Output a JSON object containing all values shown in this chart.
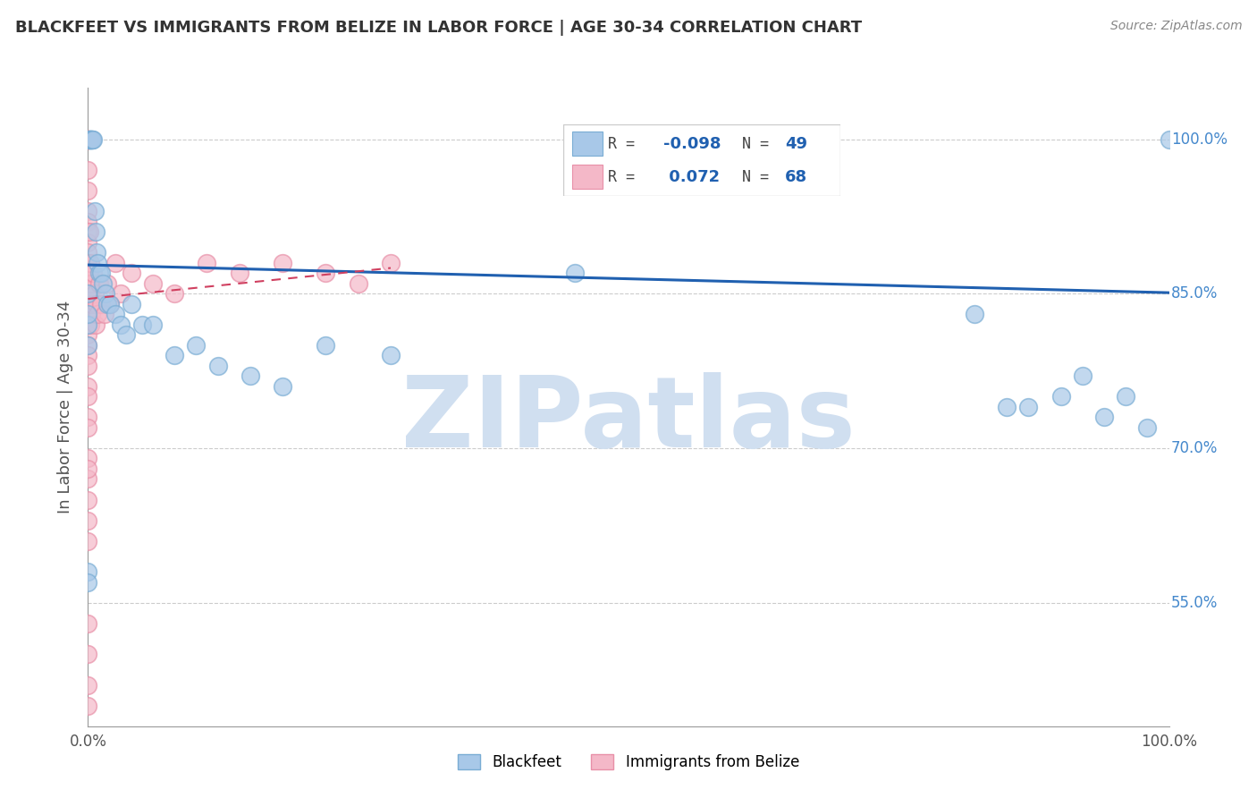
{
  "title": "BLACKFEET VS IMMIGRANTS FROM BELIZE IN LABOR FORCE | AGE 30-34 CORRELATION CHART",
  "source": "Source: ZipAtlas.com",
  "ylabel": "In Labor Force | Age 30-34",
  "legend_labels": [
    "Blackfeet",
    "Immigrants from Belize"
  ],
  "r_blue": -0.098,
  "n_blue": 49,
  "r_pink": 0.072,
  "n_pink": 68,
  "blue_color": "#a8c8e8",
  "pink_color": "#f4b8c8",
  "blue_edge_color": "#7aadd4",
  "pink_edge_color": "#e890a8",
  "blue_line_color": "#2060b0",
  "pink_line_color": "#d04060",
  "watermark": "ZIPatlas",
  "watermark_color": "#d0dff0",
  "xlim": [
    0.0,
    1.0
  ],
  "ylim": [
    0.43,
    1.05
  ],
  "ytick_positions": [
    0.55,
    0.7,
    0.85,
    1.0
  ],
  "ytick_labels": [
    "55.0%",
    "70.0%",
    "85.0%",
    "100.0%"
  ],
  "xtick_positions": [
    0.0,
    0.2,
    0.4,
    0.6,
    0.8,
    1.0
  ],
  "xtick_labels": [
    "0.0%",
    "",
    "",
    "",
    "",
    "100.0%"
  ],
  "blue_line_x0": 0.0,
  "blue_line_y0": 0.878,
  "blue_line_x1": 1.0,
  "blue_line_y1": 0.851,
  "pink_line_x0": 0.0,
  "pink_line_y0": 0.845,
  "pink_line_x1": 0.28,
  "pink_line_y1": 0.875,
  "blue_x": [
    0.001,
    0.001,
    0.001,
    0.002,
    0.002,
    0.003,
    0.003,
    0.004,
    0.004,
    0.005,
    0.006,
    0.007,
    0.008,
    0.009,
    0.01,
    0.012,
    0.014,
    0.016,
    0.018,
    0.02,
    0.025,
    0.03,
    0.035,
    0.04,
    0.05,
    0.06,
    0.08,
    0.1,
    0.12,
    0.15,
    0.18,
    0.22,
    0.28,
    0.45,
    0.82,
    0.85,
    0.87,
    0.9,
    0.92,
    0.94,
    0.96,
    0.98,
    1.0,
    0.0,
    0.0,
    0.0,
    0.0,
    0.0,
    0.0
  ],
  "blue_y": [
    1.0,
    1.0,
    1.0,
    1.0,
    1.0,
    1.0,
    1.0,
    1.0,
    1.0,
    1.0,
    0.93,
    0.91,
    0.89,
    0.88,
    0.87,
    0.87,
    0.86,
    0.85,
    0.84,
    0.84,
    0.83,
    0.82,
    0.81,
    0.84,
    0.82,
    0.82,
    0.79,
    0.8,
    0.78,
    0.77,
    0.76,
    0.8,
    0.79,
    0.87,
    0.83,
    0.74,
    0.74,
    0.75,
    0.77,
    0.73,
    0.75,
    0.72,
    1.0,
    0.58,
    0.57,
    0.82,
    0.8,
    0.85,
    0.83
  ],
  "pink_x": [
    0.0,
    0.0,
    0.0,
    0.0,
    0.0,
    0.0,
    0.0,
    0.0,
    0.0,
    0.0,
    0.0,
    0.0,
    0.0,
    0.0,
    0.0,
    0.0,
    0.0,
    0.0,
    0.0,
    0.0,
    0.0,
    0.0,
    0.0,
    0.0,
    0.0,
    0.0,
    0.0,
    0.0,
    0.0,
    0.0,
    0.001,
    0.001,
    0.001,
    0.002,
    0.002,
    0.002,
    0.003,
    0.003,
    0.004,
    0.005,
    0.006,
    0.007,
    0.008,
    0.009,
    0.01,
    0.012,
    0.015,
    0.018,
    0.02,
    0.025,
    0.03,
    0.04,
    0.06,
    0.08,
    0.11,
    0.14,
    0.18,
    0.22,
    0.25,
    0.28,
    0.0,
    0.0,
    0.0,
    0.0,
    0.0,
    0.0,
    0.0,
    0.0
  ],
  "pink_y": [
    1.0,
    1.0,
    1.0,
    1.0,
    1.0,
    1.0,
    1.0,
    0.97,
    0.95,
    0.93,
    0.92,
    0.91,
    0.9,
    0.89,
    0.88,
    0.87,
    0.86,
    0.85,
    0.84,
    0.82,
    0.81,
    0.8,
    0.79,
    0.78,
    0.76,
    0.75,
    0.73,
    0.72,
    0.69,
    0.67,
    0.91,
    0.87,
    0.84,
    0.88,
    0.85,
    0.82,
    0.86,
    0.83,
    0.84,
    0.87,
    0.85,
    0.82,
    0.84,
    0.83,
    0.86,
    0.84,
    0.83,
    0.86,
    0.84,
    0.88,
    0.85,
    0.87,
    0.86,
    0.85,
    0.88,
    0.87,
    0.88,
    0.87,
    0.86,
    0.88,
    0.53,
    0.5,
    0.47,
    0.45,
    0.61,
    0.63,
    0.65,
    0.68
  ]
}
